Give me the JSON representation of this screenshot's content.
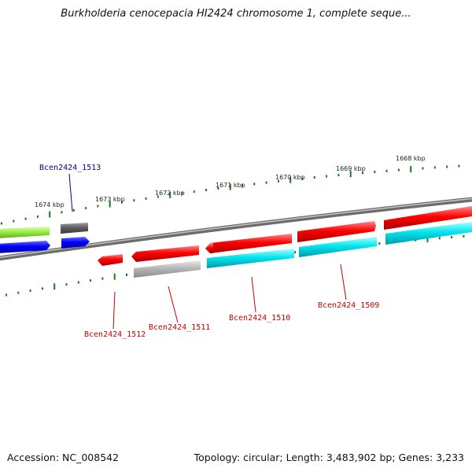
{
  "title": "Burkholderia cenocepacia HI2424 chromosome 1, complete seque...",
  "footer": {
    "accession": "Accession: NC_008542",
    "summary": "Topology: circular; Length: 3,483,902 bp; Genes: 3,233"
  },
  "ruler_labels": [
    "1674 kbp",
    "1673 kbp",
    "1672 kbp",
    "1671 kbp",
    "1670 kbp",
    "1669 kbp",
    "1668 kbp"
  ],
  "gene_labels": [
    {
      "text": "Bcen2424_1513",
      "color": "#000099"
    },
    {
      "text": "Bcen2424_1512",
      "color": "#cc0000"
    },
    {
      "text": "Bcen2424_1511",
      "color": "#cc0000"
    },
    {
      "text": "Bcen2424_1510",
      "color": "#cc0000"
    },
    {
      "text": "Bcen2424_1509",
      "color": "#cc0000"
    }
  ],
  "colors": {
    "backbone": "#808080",
    "ticks": "#1a7a1a",
    "red": "#ff0000",
    "cyan": "#00e5ee",
    "blue": "#0000ff",
    "green": "#99ee44",
    "dark_gray": "#606060",
    "light_gray": "#b8b8b8"
  }
}
